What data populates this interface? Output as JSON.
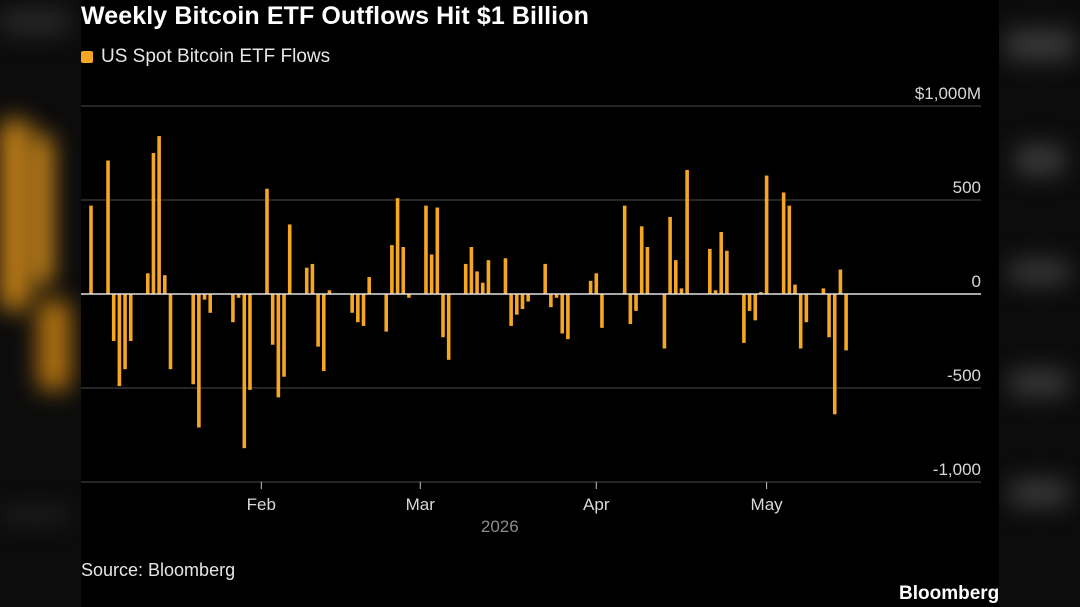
{
  "title": "Weekly Bitcoin ETF Outflows Hit $1 Billion",
  "source": "Source: Bloomberg",
  "brand": "Bloomberg",
  "colors": {
    "bar": "#f5a623",
    "grid": "#4d4d4d",
    "zero": "#e0e0e0",
    "background": "#000000"
  },
  "chart_data": {
    "type": "bar",
    "title": "Weekly Bitcoin ETF Outflows Hit $1 Billion",
    "legend_position": "top-left",
    "grid": true,
    "ylim": [
      -1000,
      1000
    ],
    "y_ticks": [
      {
        "value": 1000,
        "label": "$1,000M"
      },
      {
        "value": 500,
        "label": "500"
      },
      {
        "value": 0,
        "label": "0"
      },
      {
        "value": -500,
        "label": "-500"
      },
      {
        "value": -1000,
        "label": "-1,000"
      }
    ],
    "x_ticks": [
      {
        "date": "2026-02-01",
        "label": "Feb"
      },
      {
        "date": "2026-03-01",
        "label": "Mar"
      },
      {
        "date": "2026-04-01",
        "label": "Apr"
      },
      {
        "date": "2026-05-01",
        "label": "May"
      }
    ],
    "x_range": [
      "2026-01-02",
      "2026-06-06"
    ],
    "year_label": "2026",
    "series": [
      {
        "name": "US Spot Bitcoin ETF Flows",
        "points": [
          {
            "date": "2026-01-02",
            "value": 470
          },
          {
            "date": "2026-01-05",
            "value": 710
          },
          {
            "date": "2026-01-06",
            "value": -250
          },
          {
            "date": "2026-01-07",
            "value": -490
          },
          {
            "date": "2026-01-08",
            "value": -400
          },
          {
            "date": "2026-01-09",
            "value": -250
          },
          {
            "date": "2026-01-12",
            "value": 110
          },
          {
            "date": "2026-01-13",
            "value": 750
          },
          {
            "date": "2026-01-14",
            "value": 840
          },
          {
            "date": "2026-01-15",
            "value": 100
          },
          {
            "date": "2026-01-16",
            "value": -400
          },
          {
            "date": "2026-01-20",
            "value": -480
          },
          {
            "date": "2026-01-21",
            "value": -710
          },
          {
            "date": "2026-01-22",
            "value": -30
          },
          {
            "date": "2026-01-23",
            "value": -100
          },
          {
            "date": "2026-01-27",
            "value": -150
          },
          {
            "date": "2026-01-28",
            "value": -20
          },
          {
            "date": "2026-01-29",
            "value": -820
          },
          {
            "date": "2026-01-30",
            "value": -510
          },
          {
            "date": "2026-02-02",
            "value": 560
          },
          {
            "date": "2026-02-03",
            "value": -270
          },
          {
            "date": "2026-02-04",
            "value": -550
          },
          {
            "date": "2026-02-05",
            "value": -440
          },
          {
            "date": "2026-02-06",
            "value": 370
          },
          {
            "date": "2026-02-09",
            "value": 140
          },
          {
            "date": "2026-02-10",
            "value": 160
          },
          {
            "date": "2026-02-11",
            "value": -280
          },
          {
            "date": "2026-02-12",
            "value": -410
          },
          {
            "date": "2026-02-13",
            "value": 20
          },
          {
            "date": "2026-02-17",
            "value": -100
          },
          {
            "date": "2026-02-18",
            "value": -150
          },
          {
            "date": "2026-02-19",
            "value": -170
          },
          {
            "date": "2026-02-20",
            "value": 90
          },
          {
            "date": "2026-02-23",
            "value": -200
          },
          {
            "date": "2026-02-24",
            "value": 260
          },
          {
            "date": "2026-02-25",
            "value": 510
          },
          {
            "date": "2026-02-26",
            "value": 250
          },
          {
            "date": "2026-02-27",
            "value": -20
          },
          {
            "date": "2026-03-02",
            "value": 470
          },
          {
            "date": "2026-03-03",
            "value": 210
          },
          {
            "date": "2026-03-04",
            "value": 460
          },
          {
            "date": "2026-03-05",
            "value": -230
          },
          {
            "date": "2026-03-06",
            "value": -350
          },
          {
            "date": "2026-03-09",
            "value": 160
          },
          {
            "date": "2026-03-10",
            "value": 250
          },
          {
            "date": "2026-03-11",
            "value": 120
          },
          {
            "date": "2026-03-12",
            "value": 60
          },
          {
            "date": "2026-03-13",
            "value": 180
          },
          {
            "date": "2026-03-16",
            "value": 190
          },
          {
            "date": "2026-03-17",
            "value": -170
          },
          {
            "date": "2026-03-18",
            "value": -110
          },
          {
            "date": "2026-03-19",
            "value": -80
          },
          {
            "date": "2026-03-20",
            "value": -40
          },
          {
            "date": "2026-03-23",
            "value": 160
          },
          {
            "date": "2026-03-24",
            "value": -70
          },
          {
            "date": "2026-03-25",
            "value": -20
          },
          {
            "date": "2026-03-26",
            "value": -210
          },
          {
            "date": "2026-03-27",
            "value": -240
          },
          {
            "date": "2026-03-31",
            "value": 70
          },
          {
            "date": "2026-04-01",
            "value": 110
          },
          {
            "date": "2026-04-02",
            "value": -180
          },
          {
            "date": "2026-04-06",
            "value": 470
          },
          {
            "date": "2026-04-07",
            "value": -160
          },
          {
            "date": "2026-04-08",
            "value": -90
          },
          {
            "date": "2026-04-09",
            "value": 360
          },
          {
            "date": "2026-04-10",
            "value": 250
          },
          {
            "date": "2026-04-13",
            "value": -290
          },
          {
            "date": "2026-04-14",
            "value": 410
          },
          {
            "date": "2026-04-15",
            "value": 180
          },
          {
            "date": "2026-04-16",
            "value": 30
          },
          {
            "date": "2026-04-17",
            "value": 660
          },
          {
            "date": "2026-04-21",
            "value": 240
          },
          {
            "date": "2026-04-22",
            "value": 20
          },
          {
            "date": "2026-04-23",
            "value": 330
          },
          {
            "date": "2026-04-24",
            "value": 230
          },
          {
            "date": "2026-04-27",
            "value": -260
          },
          {
            "date": "2026-04-28",
            "value": -90
          },
          {
            "date": "2026-04-29",
            "value": -140
          },
          {
            "date": "2026-04-30",
            "value": 10
          },
          {
            "date": "2026-05-01",
            "value": 630
          },
          {
            "date": "2026-05-04",
            "value": 540
          },
          {
            "date": "2026-05-05",
            "value": 470
          },
          {
            "date": "2026-05-06",
            "value": 50
          },
          {
            "date": "2026-05-07",
            "value": -290
          },
          {
            "date": "2026-05-08",
            "value": -150
          },
          {
            "date": "2026-05-11",
            "value": 30
          },
          {
            "date": "2026-05-12",
            "value": -230
          },
          {
            "date": "2026-05-13",
            "value": -640
          },
          {
            "date": "2026-05-14",
            "value": 130
          },
          {
            "date": "2026-05-15",
            "value": -300
          }
        ]
      }
    ]
  }
}
